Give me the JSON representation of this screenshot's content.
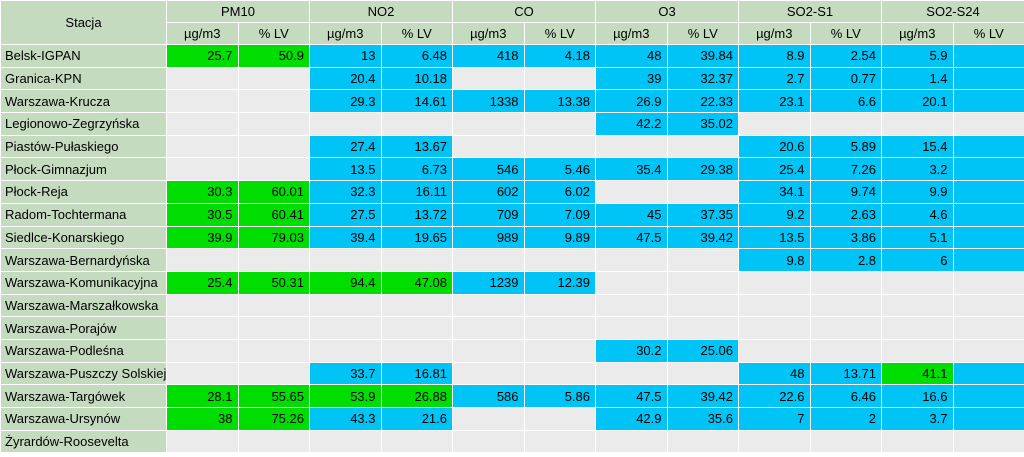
{
  "header": {
    "station": "Stacja",
    "pollutants": [
      "PM10",
      "NO2",
      "CO",
      "O3",
      "SO2-S1",
      "SO2-S24"
    ],
    "units": [
      "µg/m3",
      "% LV"
    ]
  },
  "colors": {
    "header_bg": "#c5dbbf",
    "green": "#00dd00",
    "blue": "#00c4f5",
    "empty": "#ebebeb"
  },
  "rows": [
    {
      "station": "Belsk-IGPAN",
      "cells": [
        [
          "25.7",
          "g"
        ],
        [
          "50.9",
          "g"
        ],
        [
          "13",
          "b"
        ],
        [
          "6.48",
          "b"
        ],
        [
          "418",
          "b"
        ],
        [
          "4.18",
          "b"
        ],
        [
          "48",
          "b"
        ],
        [
          "39.84",
          "b"
        ],
        [
          "8.9",
          "b"
        ],
        [
          "2.54",
          "b"
        ],
        [
          "5.9",
          "b"
        ],
        [
          "",
          "b"
        ]
      ]
    },
    {
      "station": "Granica-KPN",
      "cells": [
        [
          "",
          "e"
        ],
        [
          "",
          "e"
        ],
        [
          "20.4",
          "b"
        ],
        [
          "10.18",
          "b"
        ],
        [
          "",
          "e"
        ],
        [
          "",
          "e"
        ],
        [
          "39",
          "b"
        ],
        [
          "32.37",
          "b"
        ],
        [
          "2.7",
          "b"
        ],
        [
          "0.77",
          "b"
        ],
        [
          "1.4",
          "b"
        ],
        [
          "",
          "b"
        ]
      ]
    },
    {
      "station": "Warszawa-Krucza",
      "cells": [
        [
          "",
          "e"
        ],
        [
          "",
          "e"
        ],
        [
          "29.3",
          "b"
        ],
        [
          "14.61",
          "b"
        ],
        [
          "1338",
          "b"
        ],
        [
          "13.38",
          "b"
        ],
        [
          "26.9",
          "b"
        ],
        [
          "22.33",
          "b"
        ],
        [
          "23.1",
          "b"
        ],
        [
          "6.6",
          "b"
        ],
        [
          "20.1",
          "b"
        ],
        [
          "",
          "b"
        ]
      ]
    },
    {
      "station": "Legionowo-Zegrzyńska",
      "cells": [
        [
          "",
          "e"
        ],
        [
          "",
          "e"
        ],
        [
          "",
          "e"
        ],
        [
          "",
          "e"
        ],
        [
          "",
          "e"
        ],
        [
          "",
          "e"
        ],
        [
          "42.2",
          "b"
        ],
        [
          "35.02",
          "b"
        ],
        [
          "",
          "e"
        ],
        [
          "",
          "e"
        ],
        [
          "",
          "e"
        ],
        [
          "",
          "e"
        ]
      ]
    },
    {
      "station": "Piastów-Pułaskiego",
      "cells": [
        [
          "",
          "e"
        ],
        [
          "",
          "e"
        ],
        [
          "27.4",
          "b"
        ],
        [
          "13.67",
          "b"
        ],
        [
          "",
          "e"
        ],
        [
          "",
          "e"
        ],
        [
          "",
          "e"
        ],
        [
          "",
          "e"
        ],
        [
          "20.6",
          "b"
        ],
        [
          "5.89",
          "b"
        ],
        [
          "15.4",
          "b"
        ],
        [
          "",
          "b"
        ]
      ]
    },
    {
      "station": "Płock-Gimnazjum",
      "cells": [
        [
          "",
          "e"
        ],
        [
          "",
          "e"
        ],
        [
          "13.5",
          "b"
        ],
        [
          "6.73",
          "b"
        ],
        [
          "546",
          "b"
        ],
        [
          "5.46",
          "b"
        ],
        [
          "35.4",
          "b"
        ],
        [
          "29.38",
          "b"
        ],
        [
          "25.4",
          "b"
        ],
        [
          "7.26",
          "b"
        ],
        [
          "3.2",
          "b"
        ],
        [
          "",
          "b"
        ]
      ]
    },
    {
      "station": "Płock-Reja",
      "cells": [
        [
          "30.3",
          "g"
        ],
        [
          "60.01",
          "g"
        ],
        [
          "32.3",
          "b"
        ],
        [
          "16.11",
          "b"
        ],
        [
          "602",
          "b"
        ],
        [
          "6.02",
          "b"
        ],
        [
          "",
          "e"
        ],
        [
          "",
          "e"
        ],
        [
          "34.1",
          "b"
        ],
        [
          "9.74",
          "b"
        ],
        [
          "9.9",
          "b"
        ],
        [
          "",
          "b"
        ]
      ]
    },
    {
      "station": "Radom-Tochtermana",
      "cells": [
        [
          "30.5",
          "g"
        ],
        [
          "60.41",
          "g"
        ],
        [
          "27.5",
          "b"
        ],
        [
          "13.72",
          "b"
        ],
        [
          "709",
          "b"
        ],
        [
          "7.09",
          "b"
        ],
        [
          "45",
          "b"
        ],
        [
          "37.35",
          "b"
        ],
        [
          "9.2",
          "b"
        ],
        [
          "2.63",
          "b"
        ],
        [
          "4.6",
          "b"
        ],
        [
          "",
          "b"
        ]
      ]
    },
    {
      "station": "Siedlce-Konarskiego",
      "cells": [
        [
          "39.9",
          "g"
        ],
        [
          "79.03",
          "g"
        ],
        [
          "39.4",
          "b"
        ],
        [
          "19.65",
          "b"
        ],
        [
          "989",
          "b"
        ],
        [
          "9.89",
          "b"
        ],
        [
          "47.5",
          "b"
        ],
        [
          "39.42",
          "b"
        ],
        [
          "13.5",
          "b"
        ],
        [
          "3.86",
          "b"
        ],
        [
          "5.1",
          "b"
        ],
        [
          "",
          "b"
        ]
      ]
    },
    {
      "station": "Warszawa-Bernardyńska",
      "cells": [
        [
          "",
          "e"
        ],
        [
          "",
          "e"
        ],
        [
          "",
          "e"
        ],
        [
          "",
          "e"
        ],
        [
          "",
          "e"
        ],
        [
          "",
          "e"
        ],
        [
          "",
          "e"
        ],
        [
          "",
          "e"
        ],
        [
          "9.8",
          "b"
        ],
        [
          "2.8",
          "b"
        ],
        [
          "6",
          "b"
        ],
        [
          "",
          "b"
        ]
      ]
    },
    {
      "station": "Warszawa-Komunikacyjna",
      "cells": [
        [
          "25.4",
          "g"
        ],
        [
          "50.31",
          "g"
        ],
        [
          "94.4",
          "g"
        ],
        [
          "47.08",
          "g"
        ],
        [
          "1239",
          "b"
        ],
        [
          "12.39",
          "b"
        ],
        [
          "",
          "e"
        ],
        [
          "",
          "e"
        ],
        [
          "",
          "e"
        ],
        [
          "",
          "e"
        ],
        [
          "",
          "e"
        ],
        [
          "",
          "e"
        ]
      ]
    },
    {
      "station": "Warszawa-Marszałkowska",
      "cells": [
        [
          "",
          "e"
        ],
        [
          "",
          "e"
        ],
        [
          "",
          "e"
        ],
        [
          "",
          "e"
        ],
        [
          "",
          "e"
        ],
        [
          "",
          "e"
        ],
        [
          "",
          "e"
        ],
        [
          "",
          "e"
        ],
        [
          "",
          "e"
        ],
        [
          "",
          "e"
        ],
        [
          "",
          "e"
        ],
        [
          "",
          "e"
        ]
      ]
    },
    {
      "station": "Warszawa-Porajów",
      "cells": [
        [
          "",
          "e"
        ],
        [
          "",
          "e"
        ],
        [
          "",
          "e"
        ],
        [
          "",
          "e"
        ],
        [
          "",
          "e"
        ],
        [
          "",
          "e"
        ],
        [
          "",
          "e"
        ],
        [
          "",
          "e"
        ],
        [
          "",
          "e"
        ],
        [
          "",
          "e"
        ],
        [
          "",
          "e"
        ],
        [
          "",
          "e"
        ]
      ]
    },
    {
      "station": "Warszawa-Podleśna",
      "cells": [
        [
          "",
          "e"
        ],
        [
          "",
          "e"
        ],
        [
          "",
          "e"
        ],
        [
          "",
          "e"
        ],
        [
          "",
          "e"
        ],
        [
          "",
          "e"
        ],
        [
          "30.2",
          "b"
        ],
        [
          "25.06",
          "b"
        ],
        [
          "",
          "e"
        ],
        [
          "",
          "e"
        ],
        [
          "",
          "e"
        ],
        [
          "",
          "e"
        ]
      ]
    },
    {
      "station": "Warszawa-Puszczy Solskiej",
      "cells": [
        [
          "",
          "e"
        ],
        [
          "",
          "e"
        ],
        [
          "33.7",
          "b"
        ],
        [
          "16.81",
          "b"
        ],
        [
          "",
          "e"
        ],
        [
          "",
          "e"
        ],
        [
          "",
          "e"
        ],
        [
          "",
          "e"
        ],
        [
          "48",
          "b"
        ],
        [
          "13.71",
          "b"
        ],
        [
          "41.1",
          "g"
        ],
        [
          "",
          "b"
        ]
      ]
    },
    {
      "station": "Warszawa-Targówek",
      "cells": [
        [
          "28.1",
          "g"
        ],
        [
          "55.65",
          "g"
        ],
        [
          "53.9",
          "g"
        ],
        [
          "26.88",
          "g"
        ],
        [
          "586",
          "b"
        ],
        [
          "5.86",
          "b"
        ],
        [
          "47.5",
          "b"
        ],
        [
          "39.42",
          "b"
        ],
        [
          "22.6",
          "b"
        ],
        [
          "6.46",
          "b"
        ],
        [
          "16.6",
          "b"
        ],
        [
          "",
          "b"
        ]
      ]
    },
    {
      "station": "Warszawa-Ursynów",
      "cells": [
        [
          "38",
          "g"
        ],
        [
          "75.26",
          "g"
        ],
        [
          "43.3",
          "b"
        ],
        [
          "21.6",
          "b"
        ],
        [
          "",
          "e"
        ],
        [
          "",
          "e"
        ],
        [
          "42.9",
          "b"
        ],
        [
          "35.6",
          "b"
        ],
        [
          "7",
          "b"
        ],
        [
          "2",
          "b"
        ],
        [
          "3.7",
          "b"
        ],
        [
          "",
          "b"
        ]
      ]
    },
    {
      "station": "Żyrardów-Roosevelta",
      "cells": [
        [
          "",
          "e"
        ],
        [
          "",
          "e"
        ],
        [
          "",
          "e"
        ],
        [
          "",
          "e"
        ],
        [
          "",
          "e"
        ],
        [
          "",
          "e"
        ],
        [
          "",
          "e"
        ],
        [
          "",
          "e"
        ],
        [
          "",
          "e"
        ],
        [
          "",
          "e"
        ],
        [
          "",
          "e"
        ],
        [
          "",
          "e"
        ]
      ]
    }
  ]
}
